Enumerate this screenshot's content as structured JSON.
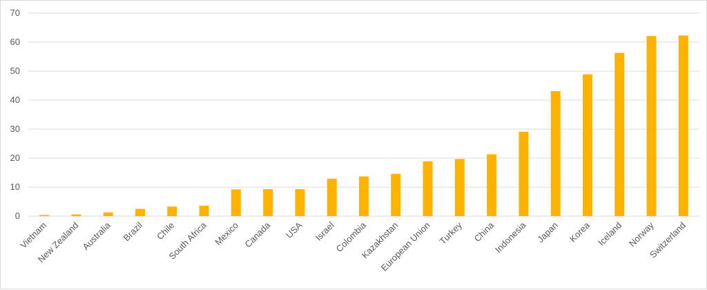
{
  "chart_data": {
    "type": "bar",
    "title": "",
    "xlabel": "",
    "ylabel": "",
    "ylim": [
      0,
      70
    ],
    "yticks": [
      0,
      10,
      20,
      30,
      40,
      50,
      60,
      70
    ],
    "grid": true,
    "legend": "none",
    "bar_color": "#ffb300",
    "categories": [
      "Vietnam",
      "New Zealand",
      "Australia",
      "Brazil",
      "Chile",
      "South Africa",
      "Mexico",
      "Canada",
      "USA",
      "Israel",
      "Colombia",
      "Kazakhstan",
      "European Union",
      "Turkey",
      "China",
      "Indonesia",
      "Japan",
      "Korea",
      "Iceland",
      "Norway",
      "Switzerland"
    ],
    "values": [
      0.4,
      0.6,
      1.3,
      2.5,
      3.3,
      3.6,
      9.2,
      9.3,
      9.3,
      12.9,
      13.7,
      14.6,
      18.9,
      19.7,
      21.3,
      29.1,
      43.1,
      48.9,
      56.3,
      62.1,
      62.3
    ]
  }
}
